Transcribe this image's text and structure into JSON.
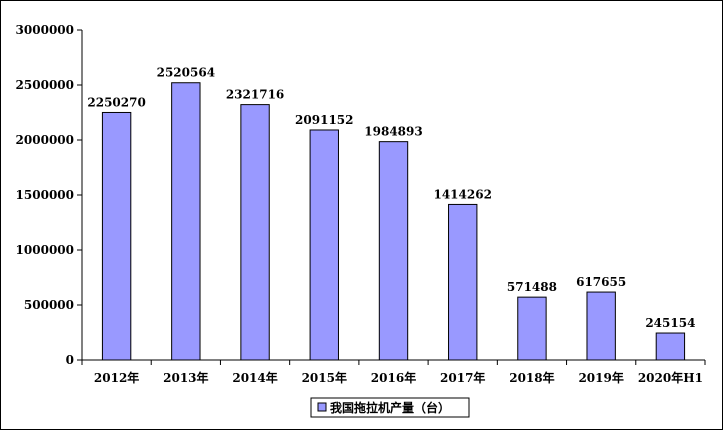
{
  "chart_data": {
    "type": "bar",
    "categories": [
      "2012年",
      "2013年",
      "2014年",
      "2015年",
      "2016年",
      "2017年",
      "2018年",
      "2019年",
      "2020年H1"
    ],
    "series": [
      {
        "name": "我国拖拉机产量（台）",
        "values": [
          2250270,
          2520564,
          2321716,
          2091152,
          1984893,
          1414262,
          571488,
          617655,
          245154
        ],
        "labels": [
          "2250270",
          "2520564",
          "2321716",
          "2091152",
          "1984893",
          "1414262",
          "571488",
          "617655",
          "245154"
        ]
      }
    ],
    "yticks": [
      "0",
      "500000",
      "1000000",
      "1500000",
      "2000000",
      "2500000",
      "3000000"
    ],
    "ylim": [
      0,
      3000000
    ],
    "grid": false,
    "legend_position": "bottom",
    "colors": {
      "bar_fill": "#9999ff",
      "bar_stroke": "#000000"
    }
  }
}
